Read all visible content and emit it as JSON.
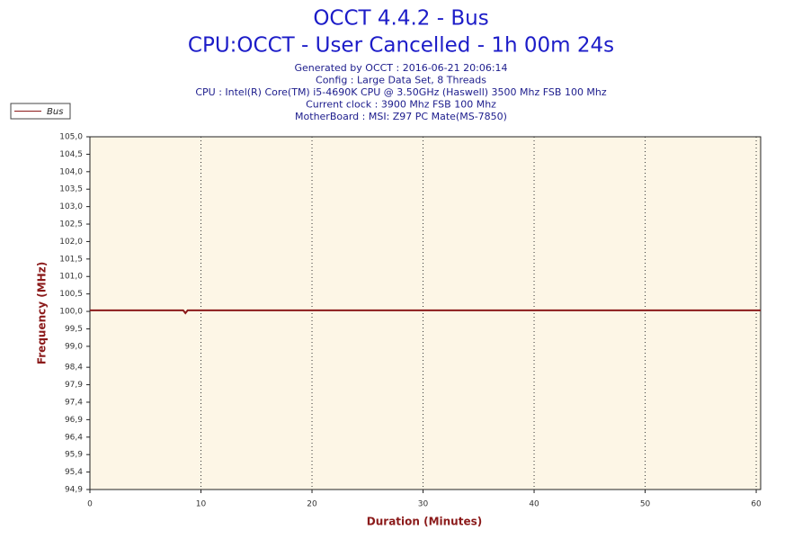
{
  "chart_data": {
    "type": "line",
    "title": "OCCT 4.4.2 - Bus",
    "subtitle": "CPU:OCCT - User Cancelled - 1h 00m 24s",
    "info": [
      "Generated by OCCT : 2016-06-21 20:06:14",
      "Config : Large Data Set, 8 Threads",
      "CPU : Intel(R) Core(TM) i5-4690K CPU @ 3.50GHz (Haswell) 3500 Mhz FSB 100 Mhz",
      "Current clock : 3900 Mhz FSB 100 Mhz",
      "MotherBoard : MSI: Z97 PC Mate(MS-7850)"
    ],
    "xlabel": "Duration (Minutes)",
    "ylabel": "Frequency (MHz)",
    "x": [
      0,
      8.4,
      8.6,
      8.8,
      60.4
    ],
    "series": [
      {
        "name": "Bus",
        "color": "#8b1a1a",
        "values": [
          100.03,
          100.03,
          99.95,
          100.03,
          100.03
        ]
      }
    ],
    "xlim": [
      0,
      60.4
    ],
    "xticks": [
      0,
      10,
      20,
      30,
      40,
      50,
      60
    ],
    "ylim": [
      94.9,
      105.0
    ],
    "yticks": [
      {
        "value": 105.0,
        "label": "105,0"
      },
      {
        "value": 104.5,
        "label": "104,5"
      },
      {
        "value": 104.0,
        "label": "104,0"
      },
      {
        "value": 103.5,
        "label": "103,5"
      },
      {
        "value": 103.0,
        "label": "103,0"
      },
      {
        "value": 102.5,
        "label": "102,5"
      },
      {
        "value": 102.0,
        "label": "102,0"
      },
      {
        "value": 101.5,
        "label": "101,5"
      },
      {
        "value": 101.0,
        "label": "101,0"
      },
      {
        "value": 100.5,
        "label": "100,5"
      },
      {
        "value": 100.0,
        "label": "100,0"
      },
      {
        "value": 99.5,
        "label": "99,5"
      },
      {
        "value": 99.0,
        "label": "99,0"
      },
      {
        "value": 98.4,
        "label": "98,4"
      },
      {
        "value": 97.9,
        "label": "97,9"
      },
      {
        "value": 97.4,
        "label": "97,4"
      },
      {
        "value": 96.9,
        "label": "96,9"
      },
      {
        "value": 96.4,
        "label": "96,4"
      },
      {
        "value": 95.9,
        "label": "95,9"
      },
      {
        "value": 95.4,
        "label": "95,4"
      },
      {
        "value": 94.9,
        "label": "94,9"
      }
    ],
    "grid": true,
    "background": "#fdf6e6",
    "legend": "top-left"
  }
}
